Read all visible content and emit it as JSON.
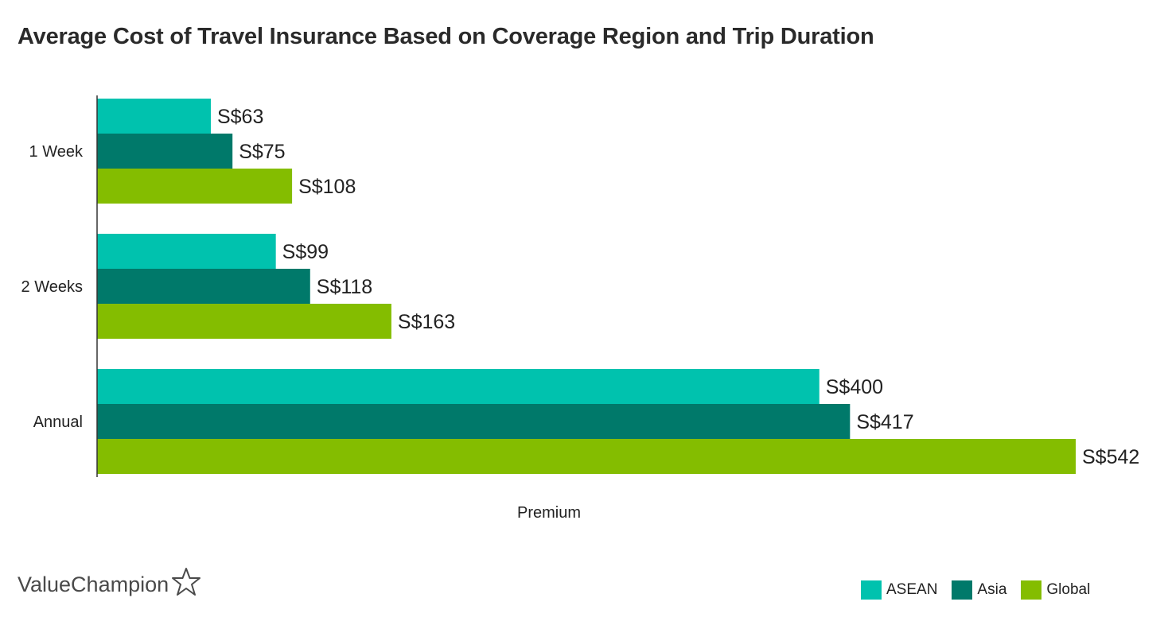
{
  "colors": {
    "asean": "#00c2ae",
    "asia": "#00796a",
    "global": "#84bd00",
    "axis": "#333333",
    "text": "#222222"
  },
  "logo_text": "ValueChampion",
  "logo_icon": "star-outline-icon",
  "chart_data": {
    "type": "bar",
    "orientation": "horizontal",
    "title": "Average Cost of Travel Insurance Based on Coverage Region and Trip Duration",
    "xlabel": "Premium",
    "ylabel": "",
    "xlim": [
      0,
      542
    ],
    "grid": false,
    "legend_position": "bottom-right",
    "value_prefix": "S$",
    "categories": [
      "1 Week",
      "2 Weeks",
      "Annual"
    ],
    "series": [
      {
        "name": "ASEAN",
        "values": [
          63,
          99,
          400
        ],
        "labels": [
          "S$63",
          "S$99",
          "S$400"
        ]
      },
      {
        "name": "Asia",
        "values": [
          75,
          118,
          417
        ],
        "labels": [
          "S$75",
          "S$118",
          "S$417"
        ]
      },
      {
        "name": "Global",
        "values": [
          108,
          163,
          542
        ],
        "labels": [
          "S$108",
          "S$163",
          "S$542"
        ]
      }
    ]
  }
}
